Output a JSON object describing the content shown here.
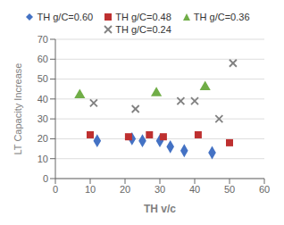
{
  "chart_data": {
    "type": "scatter",
    "xlabel": "TH v/c",
    "ylabel": "LT Capacity Increase",
    "xlim": [
      0,
      60
    ],
    "ylim": [
      0,
      70
    ],
    "xticks": [
      0,
      10,
      20,
      30,
      40,
      50,
      60
    ],
    "yticks": [
      0,
      10,
      20,
      30,
      40,
      50,
      60,
      70
    ],
    "grid": "y",
    "legend": "top",
    "series": [
      {
        "name": "TH g/C=0.60",
        "color": "#4472C4",
        "marker": "diamond",
        "x": [
          12,
          22,
          25,
          30,
          33,
          37,
          45
        ],
        "values": [
          19,
          20,
          19,
          19,
          16,
          14,
          13
        ]
      },
      {
        "name": "TH g/C=0.48",
        "color": "#BE3030",
        "marker": "square",
        "x": [
          10,
          21,
          27,
          31,
          41,
          50
        ],
        "values": [
          22,
          21,
          22,
          21,
          22,
          18
        ]
      },
      {
        "name": "TH g/C=0.36",
        "color": "#70AD47",
        "marker": "triangle",
        "x": [
          7,
          29,
          43
        ],
        "values": [
          42,
          43,
          46
        ]
      },
      {
        "name": "TH g/C=0.24",
        "color": "#808080",
        "marker": "x",
        "x": [
          11,
          23,
          36,
          40,
          47,
          51
        ],
        "values": [
          38,
          35,
          39,
          39,
          30,
          58
        ]
      }
    ]
  }
}
